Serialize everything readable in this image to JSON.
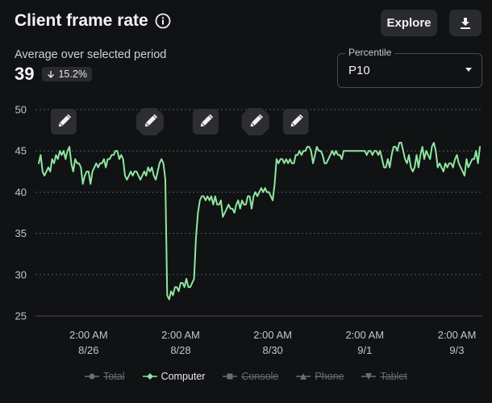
{
  "header": {
    "title": "Client frame rate",
    "explore_label": "Explore"
  },
  "summary": {
    "subtitle": "Average over selected period",
    "value": "39",
    "delta": "15.2%"
  },
  "percentile": {
    "label": "Percentile",
    "value": "P10"
  },
  "colors": {
    "series": "#8ee6a0",
    "grid": "#55565b",
    "axis": "#4a4b50"
  },
  "chart_data": {
    "type": "line",
    "title": "",
    "xlabel": "",
    "ylabel": "",
    "ylim": [
      25,
      50
    ],
    "yticks": [
      25,
      30,
      35,
      40,
      45,
      50
    ],
    "xrange": [
      "2023-08-25 00:00",
      "2023-09-03 14:00"
    ],
    "x_ticks": [
      {
        "time": "8/26 02:00",
        "line1": "2:00 AM",
        "line2": "8/26"
      },
      {
        "time": "8/28 02:00",
        "line1": "2:00 AM",
        "line2": "8/28"
      },
      {
        "time": "8/30 02:00",
        "line1": "2:00 AM",
        "line2": "8/30"
      },
      {
        "time": "9/1 02:00",
        "line1": "2:00 AM",
        "line2": "9/1"
      },
      {
        "time": "9/3 02:00",
        "line1": "2:00 AM",
        "line2": "9/3"
      }
    ],
    "annotations": [
      {
        "type": "edit-marker",
        "time": "8/25 13:00"
      },
      {
        "type": "edit-marker",
        "time": "8/27 10:00"
      },
      {
        "type": "edit-marker",
        "time": "8/28 15:00"
      },
      {
        "type": "edit-marker",
        "time": "8/29 17:00"
      },
      {
        "type": "edit-marker",
        "time": "8/30 14:00"
      }
    ],
    "series": [
      {
        "name": "Computer",
        "hours": [
          0,
          1,
          2,
          3,
          4,
          5,
          6,
          7,
          8,
          9,
          10,
          11,
          12,
          13,
          14,
          15,
          16,
          17,
          18,
          19,
          20,
          21,
          22,
          23,
          24,
          25,
          26,
          27,
          28,
          29,
          30,
          31,
          32,
          33,
          34,
          35,
          36,
          37,
          38,
          39,
          40,
          41,
          42,
          43,
          44,
          45,
          46,
          47,
          48,
          49,
          50,
          51,
          52,
          53,
          54,
          55,
          56,
          57,
          58,
          59,
          60,
          61,
          62,
          63,
          64,
          65,
          66,
          67,
          68,
          69,
          70,
          71,
          72,
          73,
          74,
          75,
          76,
          77,
          78,
          79,
          80,
          81,
          82,
          83,
          84,
          85,
          86,
          87,
          88,
          89,
          90,
          91,
          92,
          93,
          94,
          95,
          96,
          97,
          98,
          99,
          100,
          101,
          102,
          103,
          104,
          105,
          106,
          107,
          108,
          109,
          110,
          111,
          112,
          113,
          114,
          115,
          116,
          117,
          118,
          119,
          120,
          121,
          122,
          123,
          124,
          125,
          126,
          127,
          128,
          129,
          130,
          131,
          132,
          133,
          134,
          135,
          136,
          137,
          138,
          139,
          140,
          141,
          142,
          143,
          144,
          145,
          146,
          147,
          148,
          149,
          150,
          151,
          152,
          153,
          154,
          155,
          156,
          157,
          158,
          159,
          160,
          161,
          162,
          163,
          164,
          165,
          166,
          167,
          168,
          169,
          170,
          171,
          172,
          173,
          174,
          175,
          176,
          177,
          178,
          179,
          180,
          181,
          182,
          183,
          184,
          185,
          186,
          187,
          188,
          189,
          190,
          191,
          192,
          193,
          194,
          195,
          196,
          197,
          198,
          199,
          200,
          201,
          202,
          203,
          204,
          205,
          206,
          207,
          208,
          209,
          210,
          211,
          212,
          213,
          214,
          215,
          216,
          217,
          218,
          219,
          220,
          221,
          222,
          223,
          224,
          225,
          226,
          227,
          228,
          229,
          230
        ],
        "values": [
          43.5,
          44.5,
          42.5,
          42.0,
          42.5,
          43.0,
          42.5,
          44.0,
          43.5,
          44.5,
          44.0,
          45.0,
          44.5,
          45.0,
          44.0,
          45.0,
          45.5,
          43.5,
          42.5,
          44.0,
          43.5,
          43.5,
          43.0,
          41.0,
          42.0,
          42.5,
          42.5,
          41.0,
          42.5,
          43.0,
          43.5,
          43.0,
          43.5,
          43.5,
          44.0,
          43.0,
          44.0,
          44.0,
          44.5,
          44.5,
          45.0,
          45.0,
          44.0,
          44.5,
          44.0,
          42.0,
          41.5,
          42.0,
          42.5,
          42.0,
          42.5,
          42.5,
          42.0,
          41.5,
          42.0,
          42.5,
          42.0,
          43.0,
          42.5,
          43.0,
          42.0,
          41.5,
          42.5,
          43.5,
          44.0,
          43.5,
          41.5,
          27.5,
          27.0,
          28.0,
          27.5,
          28.5,
          28.5,
          28.0,
          29.0,
          29.0,
          28.5,
          29.5,
          28.5,
          28.5,
          29.0,
          29.5,
          34.5,
          37.5,
          39.0,
          39.5,
          39.5,
          39.0,
          39.5,
          39.0,
          39.5,
          38.5,
          39.5,
          38.5,
          38.5,
          39.0,
          37.0,
          37.5,
          38.0,
          38.5,
          38.0,
          38.0,
          37.5,
          38.5,
          39.0,
          38.0,
          39.0,
          38.5,
          38.5,
          39.5,
          39.5,
          38.0,
          39.5,
          40.0,
          39.5,
          40.0,
          40.5,
          40.0,
          40.5,
          40.0,
          40.0,
          39.5,
          39.0,
          41.0,
          44.0,
          43.5,
          44.0,
          44.0,
          43.5,
          44.0,
          43.5,
          44.0,
          43.5,
          43.5,
          44.5,
          44.5,
          45.0,
          44.5,
          45.0,
          45.0,
          45.5,
          45.5,
          45.0,
          43.5,
          44.5,
          45.5,
          45.0,
          45.0,
          44.5,
          43.5,
          43.5,
          44.0,
          44.5,
          45.0,
          44.5,
          45.0,
          44.5,
          44.5,
          44.0,
          45.0,
          45.0,
          45.0,
          45.0,
          45.0,
          45.0,
          45.0,
          45.0,
          45.0,
          45.0,
          45.0,
          45.0,
          44.5,
          45.0,
          45.0,
          44.5,
          45.0,
          45.0,
          44.5,
          45.0,
          44.0,
          43.0,
          43.0,
          44.0,
          43.0,
          44.5,
          45.5,
          45.5,
          45.0,
          46.0,
          46.0,
          45.0,
          44.0,
          43.5,
          44.5,
          43.0,
          42.5,
          43.0,
          44.5,
          43.0,
          44.5,
          45.5,
          44.0,
          45.0,
          44.5,
          44.0,
          45.5,
          46.0,
          45.0,
          43.0,
          43.5,
          43.0,
          42.5,
          43.5,
          43.0,
          43.5,
          43.5,
          43.0,
          44.0,
          44.5,
          43.5,
          43.0,
          42.5,
          42.0,
          44.0,
          43.0,
          43.5,
          44.0,
          44.0,
          45.0,
          43.5,
          45.5
        ]
      }
    ],
    "legend": [
      {
        "name": "Total",
        "active": false,
        "marker": "circle"
      },
      {
        "name": "Computer",
        "active": true,
        "marker": "diamond"
      },
      {
        "name": "Console",
        "active": false,
        "marker": "square"
      },
      {
        "name": "Phone",
        "active": false,
        "marker": "triangle"
      },
      {
        "name": "Tablet",
        "active": false,
        "marker": "triangle-down"
      }
    ],
    "legend_position": "bottom",
    "grid": true
  }
}
